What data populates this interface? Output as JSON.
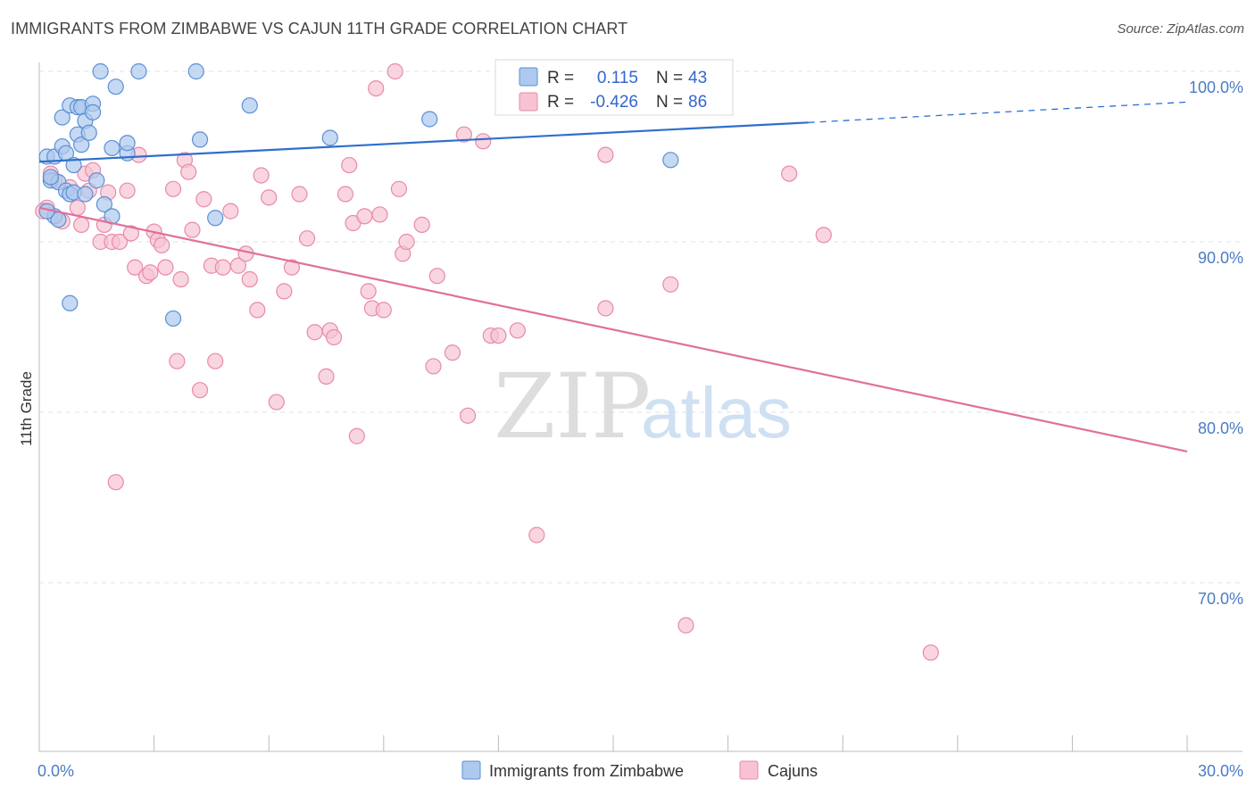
{
  "title": "IMMIGRANTS FROM ZIMBABWE VS CAJUN 11TH GRADE CORRELATION CHART",
  "source": "Source: ZipAtlas.com",
  "watermark": {
    "zip": "ZIP",
    "atlas": "atlas"
  },
  "colors": {
    "blue_fill": "#aec9ee",
    "blue_stroke": "#5b8fd6",
    "blue_line": "#2f6fcc",
    "pink_fill": "#f7c3d3",
    "pink_stroke": "#e88aa8",
    "pink_line": "#e0709a",
    "tick_text": "#4a7cc4",
    "grid": "#e2e2e2"
  },
  "legend": {
    "rows": [
      {
        "r_label": "R =",
        "r_value": "0.115",
        "n_label": "N =",
        "n_value": "43"
      },
      {
        "r_label": "R =",
        "r_value": "-0.426",
        "n_label": "N =",
        "n_value": "86"
      }
    ]
  },
  "bottom_legend": [
    "Immigrants from Zimbabwe",
    "Cajuns"
  ],
  "chart_data": {
    "type": "scatter",
    "xlabel": "",
    "ylabel": "11th Grade",
    "xlim": [
      0,
      30
    ],
    "ylim": [
      61,
      100.7
    ],
    "x_tick_labels": [
      {
        "value": 0,
        "label": "0.0%"
      },
      {
        "value": 30,
        "label": "30.0%"
      }
    ],
    "y_tick_labels": [
      {
        "value": 100,
        "label": "100.0%"
      },
      {
        "value": 90,
        "label": "90.0%"
      },
      {
        "value": 80,
        "label": "80.0%"
      },
      {
        "value": 70,
        "label": "70.0%"
      }
    ],
    "grid": true,
    "legend_position": "top-center",
    "series": [
      {
        "name": "Immigrants from Zimbabwe",
        "trend": {
          "x0": 0,
          "y0": 94.7,
          "x1": 20.1,
          "y1": 97.0,
          "dashed_to_x": 30,
          "dashed_to_y": 98.2
        },
        "points": [
          [
            0.2,
            95.0
          ],
          [
            0.3,
            93.6
          ],
          [
            0.4,
            95.0
          ],
          [
            0.5,
            93.5
          ],
          [
            0.4,
            91.5
          ],
          [
            0.5,
            91.3
          ],
          [
            0.6,
            97.3
          ],
          [
            0.6,
            95.6
          ],
          [
            0.7,
            95.2
          ],
          [
            0.7,
            93.0
          ],
          [
            0.8,
            98.0
          ],
          [
            0.8,
            92.8
          ],
          [
            0.9,
            94.5
          ],
          [
            0.9,
            92.9
          ],
          [
            1.0,
            96.3
          ],
          [
            1.0,
            97.9
          ],
          [
            1.1,
            95.7
          ],
          [
            1.1,
            97.9
          ],
          [
            1.2,
            97.1
          ],
          [
            1.2,
            92.8
          ],
          [
            1.3,
            96.4
          ],
          [
            1.4,
            98.1
          ],
          [
            1.4,
            97.6
          ],
          [
            1.5,
            93.6
          ],
          [
            1.6,
            100.0
          ],
          [
            1.7,
            92.2
          ],
          [
            1.9,
            91.5
          ],
          [
            1.9,
            95.5
          ],
          [
            2.0,
            99.1
          ],
          [
            2.3,
            95.2
          ],
          [
            2.3,
            95.8
          ],
          [
            2.6,
            100.0
          ],
          [
            3.5,
            85.5
          ],
          [
            4.1,
            100.0
          ],
          [
            4.2,
            96.0
          ],
          [
            4.6,
            91.4
          ],
          [
            5.5,
            98.0
          ],
          [
            7.6,
            96.1
          ],
          [
            10.2,
            97.2
          ],
          [
            16.5,
            94.8
          ],
          [
            0.2,
            91.8
          ],
          [
            0.3,
            93.8
          ],
          [
            0.8,
            86.4
          ]
        ]
      },
      {
        "name": "Cajuns",
        "trend": {
          "x0": 0,
          "y0": 92.0,
          "x1": 30,
          "y1": 77.7
        },
        "points": [
          [
            0.2,
            92.0
          ],
          [
            0.3,
            94.0
          ],
          [
            0.4,
            93.6
          ],
          [
            0.6,
            91.2
          ],
          [
            0.8,
            93.2
          ],
          [
            1.0,
            92.0
          ],
          [
            1.1,
            91.0
          ],
          [
            1.2,
            94.0
          ],
          [
            1.3,
            93.0
          ],
          [
            1.4,
            94.2
          ],
          [
            1.6,
            90.0
          ],
          [
            1.7,
            91.0
          ],
          [
            1.8,
            92.9
          ],
          [
            1.9,
            90.0
          ],
          [
            2.1,
            90.0
          ],
          [
            2.3,
            93.0
          ],
          [
            2.4,
            90.5
          ],
          [
            2.5,
            88.5
          ],
          [
            2.6,
            95.1
          ],
          [
            2.8,
            88.0
          ],
          [
            2.9,
            88.2
          ],
          [
            3.0,
            90.6
          ],
          [
            3.1,
            90.1
          ],
          [
            3.2,
            89.8
          ],
          [
            3.3,
            88.5
          ],
          [
            3.5,
            93.1
          ],
          [
            3.6,
            83.0
          ],
          [
            3.7,
            87.8
          ],
          [
            3.8,
            94.8
          ],
          [
            3.9,
            94.1
          ],
          [
            4.0,
            90.7
          ],
          [
            4.2,
            81.3
          ],
          [
            4.3,
            92.5
          ],
          [
            4.5,
            88.6
          ],
          [
            4.6,
            83.0
          ],
          [
            4.8,
            88.5
          ],
          [
            5.0,
            91.8
          ],
          [
            5.2,
            88.6
          ],
          [
            5.4,
            89.3
          ],
          [
            5.5,
            87.8
          ],
          [
            5.7,
            86.0
          ],
          [
            5.8,
            93.9
          ],
          [
            6.0,
            92.6
          ],
          [
            6.2,
            80.6
          ],
          [
            6.4,
            87.1
          ],
          [
            6.6,
            88.5
          ],
          [
            6.8,
            92.8
          ],
          [
            7.0,
            90.2
          ],
          [
            7.2,
            84.7
          ],
          [
            7.5,
            82.1
          ],
          [
            7.6,
            84.8
          ],
          [
            7.7,
            84.4
          ],
          [
            8.0,
            92.8
          ],
          [
            8.1,
            94.5
          ],
          [
            8.2,
            91.1
          ],
          [
            8.3,
            78.6
          ],
          [
            8.5,
            91.5
          ],
          [
            8.6,
            87.1
          ],
          [
            8.7,
            86.1
          ],
          [
            8.8,
            99.0
          ],
          [
            8.9,
            91.6
          ],
          [
            9.0,
            86.0
          ],
          [
            9.3,
            100.0
          ],
          [
            9.4,
            93.1
          ],
          [
            9.5,
            89.3
          ],
          [
            9.6,
            90.0
          ],
          [
            10.0,
            91.0
          ],
          [
            10.3,
            82.7
          ],
          [
            10.4,
            88.0
          ],
          [
            10.8,
            83.5
          ],
          [
            11.1,
            96.3
          ],
          [
            11.2,
            79.8
          ],
          [
            11.6,
            95.9
          ],
          [
            11.8,
            84.5
          ],
          [
            12.0,
            84.5
          ],
          [
            12.5,
            84.8
          ],
          [
            13.0,
            72.8
          ],
          [
            14.8,
            95.1
          ],
          [
            14.8,
            86.1
          ],
          [
            16.5,
            87.5
          ],
          [
            16.9,
            67.5
          ],
          [
            19.6,
            94.0
          ],
          [
            20.5,
            90.4
          ],
          [
            23.3,
            65.9
          ],
          [
            0.1,
            91.8
          ],
          [
            2.0,
            75.9
          ]
        ]
      }
    ]
  }
}
